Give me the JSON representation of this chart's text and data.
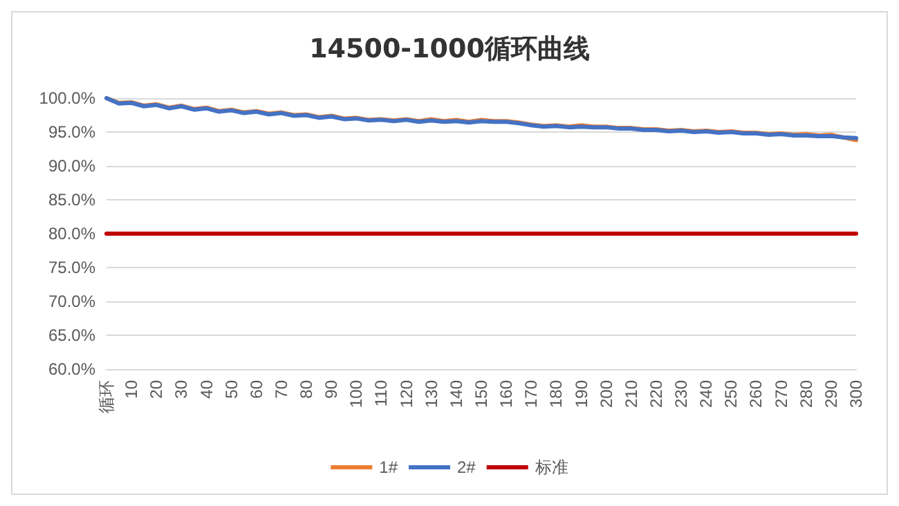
{
  "chart_data": {
    "type": "line",
    "title": "14500-1000循环曲线",
    "categories": [
      "循环",
      null,
      "10",
      null,
      "20",
      null,
      "30",
      null,
      "40",
      null,
      "50",
      null,
      "60",
      null,
      "70",
      null,
      "80",
      null,
      "90",
      null,
      "100",
      null,
      "110",
      null,
      "120",
      null,
      "130",
      null,
      "140",
      null,
      "150",
      null,
      "160",
      null,
      "170",
      null,
      "180",
      null,
      "190",
      null,
      "200",
      null,
      "210",
      null,
      "220",
      null,
      "230",
      null,
      "240",
      null,
      "250",
      null,
      "260",
      null,
      "270",
      null,
      "280",
      null,
      "290",
      null,
      "300"
    ],
    "series": [
      {
        "name": "1#",
        "color": "#ed7d31",
        "values": [
          100,
          99.3,
          99.4,
          98.9,
          99.1,
          98.6,
          98.9,
          98.4,
          98.6,
          98.1,
          98.3,
          97.9,
          98.1,
          97.7,
          97.9,
          97.5,
          97.6,
          97.2,
          97.4,
          97.0,
          97.1,
          96.8,
          96.9,
          96.7,
          96.9,
          96.6,
          96.9,
          96.6,
          96.8,
          96.5,
          96.8,
          96.6,
          96.6,
          96.4,
          96.1,
          95.9,
          96.0,
          95.8,
          96.0,
          95.8,
          95.8,
          95.6,
          95.6,
          95.4,
          95.4,
          95.2,
          95.3,
          95.1,
          95.2,
          95.0,
          95.1,
          94.9,
          94.9,
          94.7,
          94.8,
          94.6,
          94.7,
          94.5,
          94.6,
          94.2,
          93.8
        ]
      },
      {
        "name": "2#",
        "color": "#4472c4",
        "values": [
          100,
          99.2,
          99.3,
          98.8,
          99.0,
          98.5,
          98.8,
          98.3,
          98.5,
          98.0,
          98.2,
          97.8,
          98.0,
          97.6,
          97.8,
          97.4,
          97.5,
          97.1,
          97.3,
          96.9,
          97.0,
          96.7,
          96.8,
          96.6,
          96.8,
          96.5,
          96.7,
          96.5,
          96.6,
          96.4,
          96.6,
          96.5,
          96.5,
          96.3,
          96.0,
          95.8,
          95.9,
          95.7,
          95.8,
          95.7,
          95.7,
          95.5,
          95.5,
          95.3,
          95.3,
          95.1,
          95.2,
          95.0,
          95.1,
          94.9,
          95.0,
          94.8,
          94.8,
          94.6,
          94.7,
          94.5,
          94.5,
          94.4,
          94.4,
          94.2,
          94.1
        ]
      },
      {
        "name": "标准",
        "color": "#c00000",
        "values": [
          80,
          80,
          80,
          80,
          80,
          80,
          80,
          80,
          80,
          80,
          80,
          80,
          80,
          80,
          80,
          80,
          80,
          80,
          80,
          80,
          80,
          80,
          80,
          80,
          80,
          80,
          80,
          80,
          80,
          80,
          80,
          80,
          80,
          80,
          80,
          80,
          80,
          80,
          80,
          80,
          80,
          80,
          80,
          80,
          80,
          80,
          80,
          80,
          80,
          80,
          80,
          80,
          80,
          80,
          80,
          80,
          80,
          80,
          80,
          80,
          80
        ]
      }
    ],
    "ylim": [
      60,
      100
    ],
    "yticks": [
      {
        "value": 60,
        "label": "60.0%"
      },
      {
        "value": 65,
        "label": "65.0%"
      },
      {
        "value": 70,
        "label": "70.0%"
      },
      {
        "value": 75,
        "label": "75.0%"
      },
      {
        "value": 80,
        "label": "80.0%"
      },
      {
        "value": 85,
        "label": "85.0%"
      },
      {
        "value": 90,
        "label": "90.0%"
      },
      {
        "value": 95,
        "label": "95.0%"
      },
      {
        "value": 100,
        "label": "100.0%"
      }
    ],
    "grid": "y",
    "legend": "bottom",
    "marker": "none",
    "line_style": "solid"
  }
}
